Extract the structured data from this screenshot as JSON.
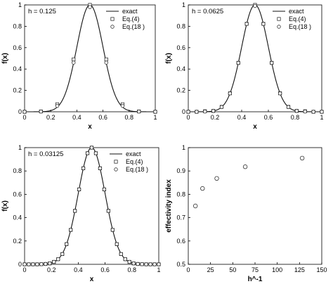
{
  "chart_data": [
    {
      "type": "line",
      "annotation": "h = 0.125",
      "xlabel": "x",
      "ylabel": "f(x)",
      "xlim": [
        0,
        1
      ],
      "ylim": [
        0,
        1
      ],
      "xticks": [
        0,
        0.2,
        0.4,
        0.6,
        0.8,
        1
      ],
      "yticks": [
        0,
        0.2,
        0.4,
        0.6,
        0.8,
        1
      ],
      "xtick_labels": [
        "0",
        "0.2",
        "0.4",
        "0.6",
        "0.8",
        "1"
      ],
      "ytick_labels": [
        "0",
        "0.2",
        "0.4",
        "0.6",
        "0.8",
        "1"
      ],
      "legend_position": "top-right",
      "series": [
        {
          "name": "exact",
          "style": "line",
          "function": "gaussian",
          "center": 0.5,
          "sigma": 0.1
        },
        {
          "name": "Eq.(4)",
          "style": "square-markers",
          "x": [
            0,
            0.125,
            0.25,
            0.375,
            0.5,
            0.625,
            0.75,
            0.875,
            1
          ],
          "y": [
            0,
            0.003,
            0.07,
            0.49,
            1.0,
            0.49,
            0.07,
            0.003,
            0
          ]
        },
        {
          "name": "Eq.(18 )",
          "style": "circle-markers",
          "x": [
            0,
            0.125,
            0.25,
            0.375,
            0.5,
            0.625,
            0.75,
            0.875,
            1
          ],
          "y": [
            0,
            0.002,
            0.055,
            0.46,
            0.98,
            0.46,
            0.055,
            0.002,
            0
          ]
        }
      ]
    },
    {
      "type": "line",
      "annotation": "h = 0.0625",
      "xlabel": "x",
      "ylabel": "f(x)",
      "xlim": [
        0,
        1
      ],
      "ylim": [
        0,
        1
      ],
      "xticks": [
        0,
        0.2,
        0.4,
        0.6,
        0.8,
        1
      ],
      "yticks": [
        0,
        0.2,
        0.4,
        0.6,
        0.8,
        1
      ],
      "xtick_labels": [
        "0",
        "0.2",
        "0.4",
        "0.6",
        "0.8",
        "1"
      ],
      "ytick_labels": [
        "0",
        "0.2",
        "0.4",
        "0.6",
        "0.8",
        "1"
      ],
      "legend_position": "top-right",
      "series": [
        {
          "name": "exact",
          "style": "line",
          "function": "gaussian",
          "center": 0.5,
          "sigma": 0.1
        },
        {
          "name": "Eq.(4)",
          "style": "square-markers",
          "x": [
            0,
            0.0625,
            0.125,
            0.1875,
            0.25,
            0.3125,
            0.375,
            0.4375,
            0.5,
            0.5625,
            0.625,
            0.6875,
            0.75,
            0.8125,
            0.875,
            0.9375,
            1
          ],
          "y": [
            0,
            0,
            0.005,
            0.008,
            0.046,
            0.173,
            0.458,
            0.823,
            1.0,
            0.823,
            0.458,
            0.173,
            0.046,
            0.008,
            0.005,
            0,
            0
          ]
        },
        {
          "name": "Eq.(18 )",
          "style": "circle-markers",
          "x": [
            0,
            0.0625,
            0.125,
            0.1875,
            0.25,
            0.3125,
            0.375,
            0.4375,
            0.5,
            0.5625,
            0.625,
            0.6875,
            0.75,
            0.8125,
            0.875,
            0.9375,
            1
          ],
          "y": [
            0,
            0,
            0.002,
            0.008,
            0.044,
            0.172,
            0.457,
            0.822,
            0.99,
            0.822,
            0.457,
            0.172,
            0.044,
            0.008,
            0.002,
            0,
            0
          ]
        }
      ]
    },
    {
      "type": "line",
      "annotation": "h = 0.03125",
      "xlabel": "x",
      "ylabel": "f(x)",
      "xlim": [
        0,
        1
      ],
      "ylim": [
        0,
        1
      ],
      "xticks": [
        0,
        0.2,
        0.4,
        0.6,
        0.8,
        1
      ],
      "yticks": [
        0,
        0.2,
        0.4,
        0.6,
        0.8,
        1
      ],
      "xtick_labels": [
        "0",
        "0.2",
        "0.4",
        "0.6",
        "0.8",
        "1"
      ],
      "ytick_labels": [
        "0",
        "0.2",
        "0.4",
        "0.6",
        "0.8",
        "1"
      ],
      "legend_position": "top-right",
      "series": [
        {
          "name": "exact",
          "style": "line",
          "function": "gaussian",
          "center": 0.5,
          "sigma": 0.1
        },
        {
          "name": "Eq.(4)",
          "style": "square-markers",
          "x": [
            0,
            0.03125,
            0.0625,
            0.09375,
            0.125,
            0.15625,
            0.1875,
            0.21875,
            0.25,
            0.28125,
            0.3125,
            0.34375,
            0.375,
            0.40625,
            0.4375,
            0.46875,
            0.5,
            0.53125,
            0.5625,
            0.59375,
            0.625,
            0.65625,
            0.6875,
            0.71875,
            0.75,
            0.78125,
            0.8125,
            0.84375,
            0.875,
            0.90625,
            0.9375,
            0.96875,
            1
          ],
          "y": [
            0,
            0,
            0,
            0,
            0.001,
            0.003,
            0.008,
            0.021,
            0.044,
            0.088,
            0.173,
            0.295,
            0.458,
            0.642,
            0.823,
            0.952,
            1.0,
            0.952,
            0.823,
            0.642,
            0.458,
            0.295,
            0.173,
            0.088,
            0.044,
            0.021,
            0.008,
            0.003,
            0.001,
            0,
            0,
            0,
            0
          ]
        },
        {
          "name": "Eq.(18 )",
          "style": "circle-markers",
          "x": [
            0,
            0.03125,
            0.0625,
            0.09375,
            0.125,
            0.15625,
            0.1875,
            0.21875,
            0.25,
            0.28125,
            0.3125,
            0.34375,
            0.375,
            0.40625,
            0.4375,
            0.46875,
            0.5,
            0.53125,
            0.5625,
            0.59375,
            0.625,
            0.65625,
            0.6875,
            0.71875,
            0.75,
            0.78125,
            0.8125,
            0.84375,
            0.875,
            0.90625,
            0.9375,
            0.96875,
            1
          ],
          "y": [
            0,
            0,
            0,
            0,
            0.001,
            0.003,
            0.008,
            0.021,
            0.044,
            0.088,
            0.173,
            0.295,
            0.458,
            0.642,
            0.823,
            0.952,
            1.0,
            0.952,
            0.823,
            0.642,
            0.458,
            0.295,
            0.173,
            0.088,
            0.044,
            0.021,
            0.008,
            0.003,
            0.001,
            0,
            0,
            0,
            0
          ]
        }
      ]
    },
    {
      "type": "scatter",
      "xlabel": "h^-1",
      "ylabel": "effectivity index",
      "xlim": [
        0,
        150
      ],
      "ylim": [
        0.5,
        1
      ],
      "xticks": [
        0,
        25,
        50,
        75,
        100,
        125,
        150
      ],
      "yticks": [
        0.5,
        0.6,
        0.7,
        0.8,
        0.9,
        1
      ],
      "xtick_labels": [
        "0",
        "25",
        "50",
        "75",
        "100",
        "125",
        "150"
      ],
      "ytick_labels": [
        "0.5",
        "0.6",
        "0.7",
        "0.8",
        "0.9",
        "1"
      ],
      "series": [
        {
          "style": "circle-markers",
          "x": [
            8,
            16,
            32,
            64,
            128
          ],
          "y": [
            0.75,
            0.825,
            0.868,
            0.918,
            0.955
          ]
        }
      ]
    }
  ]
}
